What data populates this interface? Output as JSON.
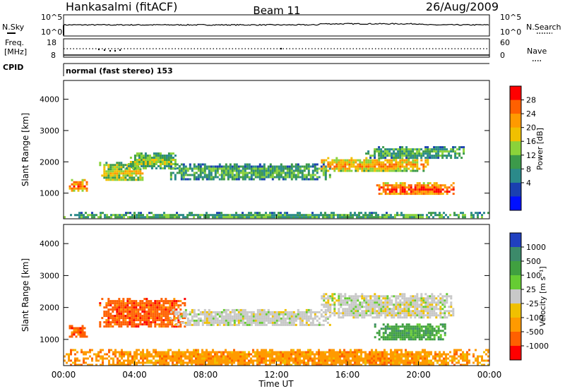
{
  "header": {
    "station": "Hankasalmi (fitACF)",
    "beam": "Beam 11",
    "date": "26/Aug/2009"
  },
  "nsky_panel": {
    "left_label": "N.Sky",
    "right_label": "N.Search",
    "left_ticks": [
      "10^5",
      "10^0"
    ],
    "right_ticks": [
      "10^5",
      "10^0"
    ]
  },
  "freq_panel": {
    "left_label_line1": "Freq.",
    "left_label_line2": "[MHz]",
    "right_label": "Nave",
    "left_ticks": [
      "18",
      "8"
    ],
    "right_ticks": [
      "60",
      "0"
    ]
  },
  "cpid": {
    "label": "CPID",
    "value": "normal (fast stereo) 153"
  },
  "chart_data": [
    {
      "type": "heatmap",
      "name": "power",
      "ylabel": "Slant Range [km]",
      "yticks": [
        "4000",
        "3000",
        "2000",
        "1000"
      ],
      "ylim": [
        180,
        4600
      ],
      "colorbar_label": "Power [dB]",
      "colorbar_ticks": [
        "28",
        "24",
        "20",
        "16",
        "12",
        "8",
        "4"
      ],
      "colorbar_colors": [
        "#ff0000",
        "#ff6000",
        "#ff9a00",
        "#f0c000",
        "#8bd23a",
        "#3c9a4a",
        "#2b8a8a",
        "#1a40b0",
        "#0010ff"
      ],
      "bands": [
        {
          "t": [
            0.3,
            1.3
          ],
          "r": [
            1100,
            1450
          ],
          "level": 24
        },
        {
          "t": [
            2.0,
            4.5
          ],
          "r": [
            1400,
            2000
          ],
          "level": 16
        },
        {
          "t": [
            3.5,
            6.5
          ],
          "r": [
            1800,
            2300
          ],
          "level": 12
        },
        {
          "t": [
            6.0,
            15.0
          ],
          "r": [
            1450,
            1950
          ],
          "level": 8
        },
        {
          "t": [
            14.5,
            20.5
          ],
          "r": [
            1700,
            2150
          ],
          "level": 20
        },
        {
          "t": [
            17.5,
            22.0
          ],
          "r": [
            950,
            1350
          ],
          "level": 28
        },
        {
          "t": [
            17.0,
            22.5
          ],
          "r": [
            2150,
            2500
          ],
          "level": 8
        },
        {
          "t": [
            0.0,
            24.0
          ],
          "r": [
            200,
            400
          ],
          "level": 8
        }
      ]
    },
    {
      "type": "heatmap",
      "name": "velocity",
      "ylabel": "Slant Range [km]",
      "yticks": [
        "4000",
        "3000",
        "2000",
        "1000"
      ],
      "ylim": [
        180,
        4600
      ],
      "xlabel": "Time UT",
      "xticks": [
        "00:00",
        "04:00",
        "08:00",
        "12:00",
        "16:00",
        "20:00",
        "00:00"
      ],
      "xlim": [
        0,
        24
      ],
      "colorbar_label": "Velocity [m s⁻¹]",
      "colorbar_ticks": [
        "1000",
        "500",
        "100",
        "25",
        "-25",
        "-100",
        "-500",
        "-1000"
      ],
      "colorbar_colors": [
        "#2040c0",
        "#3c8a6a",
        "#40a040",
        "#66cc33",
        "#c8c8c8",
        "#f0c000",
        "#ff9a00",
        "#ff6000",
        "#ff0000"
      ],
      "bands": [
        {
          "t": [
            0.3,
            1.3
          ],
          "r": [
            1100,
            1450
          ],
          "v": -500
        },
        {
          "t": [
            2.0,
            6.8
          ],
          "r": [
            1400,
            2300
          ],
          "v": -500
        },
        {
          "t": [
            6.0,
            15.0
          ],
          "r": [
            1450,
            1950
          ],
          "v": 0
        },
        {
          "t": [
            14.5,
            22.0
          ],
          "r": [
            1700,
            2450
          ],
          "v": 0
        },
        {
          "t": [
            17.5,
            21.5
          ],
          "r": [
            1000,
            1500
          ],
          "v": 100
        },
        {
          "t": [
            0.0,
            24.0
          ],
          "r": [
            200,
            700
          ],
          "v": -100
        }
      ]
    }
  ]
}
